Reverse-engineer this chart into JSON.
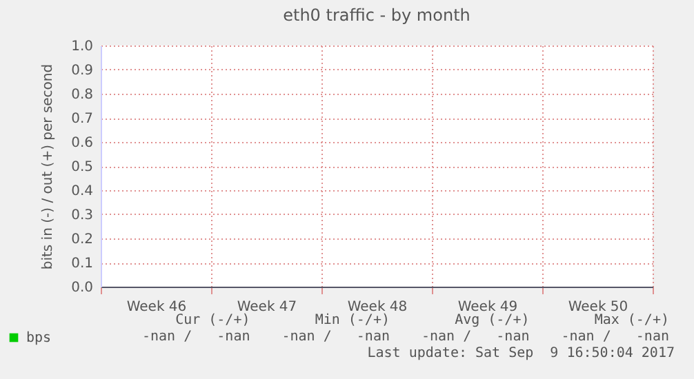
{
  "chart_data": {
    "type": "line",
    "title": "eth0 traffic - by month",
    "ylabel": "bits in (-) / out (+) per second",
    "categories": [
      "Week 46",
      "Week 47",
      "Week 48",
      "Week 49",
      "Week 50"
    ],
    "series": [
      {
        "name": "bps",
        "color": "#00cc00",
        "values": [
          null,
          null,
          null,
          null,
          null
        ]
      }
    ],
    "ylim": [
      0,
      1
    ],
    "yticks": [
      {
        "value": 0,
        "label": "0.0"
      },
      0.1,
      0.2,
      0.3,
      0.4,
      0.5,
      0.6,
      0.7,
      0.8,
      0.9,
      {
        "value": 1,
        "label": "1.0"
      }
    ],
    "grid": true,
    "legend": "bottom left",
    "annotations": [
      "Cur (-/+)",
      "Min (-/+)",
      "Avg (-/+)",
      "Max (-/+)",
      "-nan /   -nan",
      "-nan /   -nan",
      "-nan /   -nan",
      "-nan /   -nan",
      "Last update: Sat Sep  9 16:50:04 2017"
    ]
  }
}
